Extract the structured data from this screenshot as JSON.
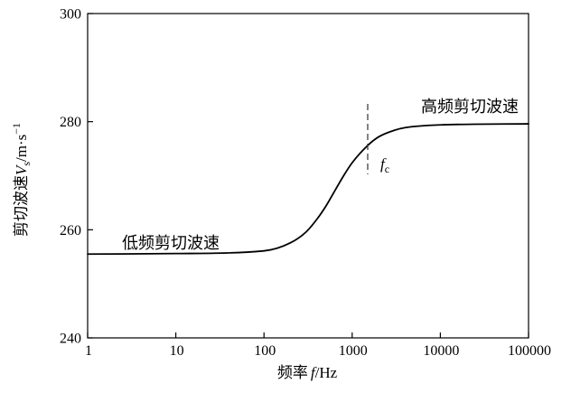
{
  "chart_data": {
    "type": "line",
    "x_scale": "log",
    "xlim": [
      1,
      100000
    ],
    "ylim": [
      240,
      300
    ],
    "x_ticks": [
      1,
      10,
      100,
      1000,
      10000,
      100000
    ],
    "x_tick_labels": [
      "1",
      "10",
      "100",
      "1000",
      "10000",
      "100000"
    ],
    "y_ticks": [
      240,
      260,
      280,
      300
    ],
    "y_tick_labels": [
      "240",
      "260",
      "280",
      "300"
    ],
    "xlabel": {
      "name": "频率",
      "symbol": "f",
      "unit": "/Hz"
    },
    "ylabel": {
      "name": "剪切波速",
      "symbol": "V",
      "subscript": "s",
      "unit": "/m·s",
      "superscript": "−1"
    },
    "series": [
      {
        "color": "#000000",
        "x": [
          1,
          10,
          100,
          200,
          300,
          400,
          500,
          600,
          800,
          1000,
          1500,
          2000,
          3000,
          4000,
          10000,
          100000
        ],
        "y": [
          255.5,
          255.6,
          256.1,
          257.6,
          259.6,
          262.0,
          264.3,
          266.5,
          270.0,
          272.4,
          275.6,
          277.2,
          278.4,
          278.9,
          279.4,
          279.6
        ]
      }
    ],
    "reference_lines": [
      {
        "x": 1500,
        "style": "dashed",
        "label": {
          "symbol": "f",
          "subscript": "c"
        }
      }
    ],
    "annotations": [
      {
        "text": "低频剪切波速"
      },
      {
        "text": "高频剪切波速"
      }
    ],
    "grid": false,
    "legend": "none"
  }
}
